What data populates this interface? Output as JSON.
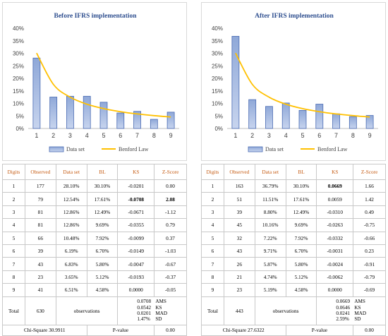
{
  "panels": [
    {
      "id": "before",
      "table": {
        "headers": [
          "Digits",
          "Observed",
          "Data set",
          "BL",
          "KS",
          "Z-Score"
        ],
        "rows": [
          {
            "digit": "1",
            "observed": "177",
            "dataset": "28.10%",
            "bl": "30.10%",
            "ks": "-0.0201",
            "z": "0.00",
            "bold": false
          },
          {
            "digit": "2",
            "observed": "79",
            "dataset": "12.54%",
            "bl": "17.61%",
            "ks": "-0.0708",
            "z": "2.08",
            "bold": true
          },
          {
            "digit": "3",
            "observed": "81",
            "dataset": "12.86%",
            "bl": "12.49%",
            "ks": "-0.0671",
            "z": "-1.12",
            "bold": false
          },
          {
            "digit": "4",
            "observed": "81",
            "dataset": "12.86%",
            "bl": "9.69%",
            "ks": "-0.0355",
            "z": "0.79",
            "bold": false
          },
          {
            "digit": "5",
            "observed": "66",
            "dataset": "10.48%",
            "bl": "7.92%",
            "ks": "-0.0099",
            "z": "0.37",
            "bold": false
          },
          {
            "digit": "6",
            "observed": "39",
            "dataset": "6.19%",
            "bl": "6.70%",
            "ks": "-0.0149",
            "z": "-1.03",
            "bold": false
          },
          {
            "digit": "7",
            "observed": "43",
            "dataset": "6.83%",
            "bl": "5.80%",
            "ks": "-0.0047",
            "z": "-0.67",
            "bold": false
          },
          {
            "digit": "8",
            "observed": "23",
            "dataset": "3.65%",
            "bl": "5.12%",
            "ks": "-0.0193",
            "z": "-0.37",
            "bold": false
          },
          {
            "digit": "9",
            "observed": "41",
            "dataset": "6.51%",
            "bl": "4.58%",
            "ks": "0.0000",
            "z": "-0.05",
            "bold": false
          }
        ],
        "total": {
          "label": "Total",
          "count": "630",
          "word": "observations",
          "metrics": [
            {
              "value": "0.0708",
              "label": "AMS"
            },
            {
              "value": "0.0542",
              "label": "KS"
            },
            {
              "value": "0.0201",
              "label": "MAD"
            },
            {
              "value": "1.47%",
              "label": "SD"
            }
          ]
        },
        "chi": {
          "label": "Chi-Square",
          "value": "30.9911",
          "p_label": "P-value",
          "p_value": "0.00"
        }
      }
    },
    {
      "id": "after",
      "table": {
        "headers": [
          "Digits",
          "Observed",
          "Data set",
          "BL",
          "KS",
          "Z-Score"
        ],
        "rows": [
          {
            "digit": "1",
            "observed": "163",
            "dataset": "36.79%",
            "bl": "30.10%",
            "ks": "0.0669",
            "z": "1.66",
            "boldks": true
          },
          {
            "digit": "2",
            "observed": "51",
            "dataset": "11.51%",
            "bl": "17.61%",
            "ks": "0.0059",
            "z": "1.42",
            "boldks": false
          },
          {
            "digit": "3",
            "observed": "39",
            "dataset": "8.80%",
            "bl": "12.49%",
            "ks": "-0.0310",
            "z": "0.49",
            "boldks": false
          },
          {
            "digit": "4",
            "observed": "45",
            "dataset": "10.16%",
            "bl": "9.69%",
            "ks": "-0.0263",
            "z": "-0.75",
            "boldks": false
          },
          {
            "digit": "5",
            "observed": "32",
            "dataset": "7.22%",
            "bl": "7.92%",
            "ks": "-0.0332",
            "z": "-0.66",
            "boldks": false
          },
          {
            "digit": "6",
            "observed": "43",
            "dataset": "9.71%",
            "bl": "6.70%",
            "ks": "-0.0031",
            "z": "0.23",
            "boldks": false
          },
          {
            "digit": "7",
            "observed": "26",
            "dataset": "5.87%",
            "bl": "5.80%",
            "ks": "-0.0024",
            "z": "-0.91",
            "boldks": false
          },
          {
            "digit": "8",
            "observed": "21",
            "dataset": "4.74%",
            "bl": "5.12%",
            "ks": "-0.0062",
            "z": "-0.79",
            "boldks": false
          },
          {
            "digit": "9",
            "observed": "23",
            "dataset": "5.19%",
            "bl": "4.58%",
            "ks": "0.0000",
            "z": "-0.69",
            "boldks": false
          }
        ],
        "total": {
          "label": "Total",
          "count": "443",
          "word": "observations",
          "metrics": [
            {
              "value": "0.0669",
              "label": "AMS"
            },
            {
              "value": "0.0646",
              "label": "KS"
            },
            {
              "value": "0.0241",
              "label": "MAD"
            },
            {
              "value": "2.59%",
              "label": "SD"
            }
          ]
        },
        "chi": {
          "label": "Chi-Square",
          "value": "27.6322",
          "p_label": "P-value",
          "p_value": "0.00"
        }
      }
    }
  ],
  "colors": {
    "bar_fill_top": "#8fa8d8",
    "bar_fill_bottom": "#c7d4ee",
    "bar_stroke": "#4a6bb3",
    "benford_line": "#ffc000",
    "header_text": "#c55a11",
    "title": "#2f4f8f"
  },
  "chart_data": [
    {
      "type": "bar",
      "title": "Before IFRS implementation",
      "categories": [
        "1",
        "2",
        "3",
        "4",
        "5",
        "6",
        "7",
        "8",
        "9"
      ],
      "series": [
        {
          "name": "Data set",
          "type": "bar",
          "values": [
            28.1,
            12.54,
            12.86,
            12.86,
            10.48,
            6.19,
            6.83,
            3.65,
            6.51
          ]
        },
        {
          "name": "Benford Law",
          "type": "line",
          "values": [
            30.1,
            17.61,
            12.49,
            9.69,
            7.92,
            6.7,
            5.8,
            5.12,
            4.58
          ]
        }
      ],
      "yticks": [
        "0%",
        "5%",
        "10%",
        "15%",
        "20%",
        "25%",
        "30%",
        "35%",
        "40%"
      ],
      "ylim": [
        0,
        40
      ],
      "legend": "bottom",
      "grid": false
    },
    {
      "type": "bar",
      "title": "After IFRS implementation",
      "categories": [
        "1",
        "2",
        "3",
        "4",
        "5",
        "6",
        "7",
        "8",
        "9"
      ],
      "series": [
        {
          "name": "Data set",
          "type": "bar",
          "values": [
            36.79,
            11.51,
            8.8,
            10.16,
            7.22,
            9.71,
            5.87,
            4.74,
            5.19
          ]
        },
        {
          "name": "Benford Law",
          "type": "line",
          "values": [
            30.1,
            17.61,
            12.49,
            9.69,
            7.92,
            6.7,
            5.8,
            5.12,
            4.58
          ]
        }
      ],
      "yticks": [
        "0%",
        "5%",
        "10%",
        "15%",
        "20%",
        "25%",
        "30%",
        "35%",
        "40%"
      ],
      "ylim": [
        0,
        40
      ],
      "legend": "bottom",
      "grid": false
    }
  ]
}
